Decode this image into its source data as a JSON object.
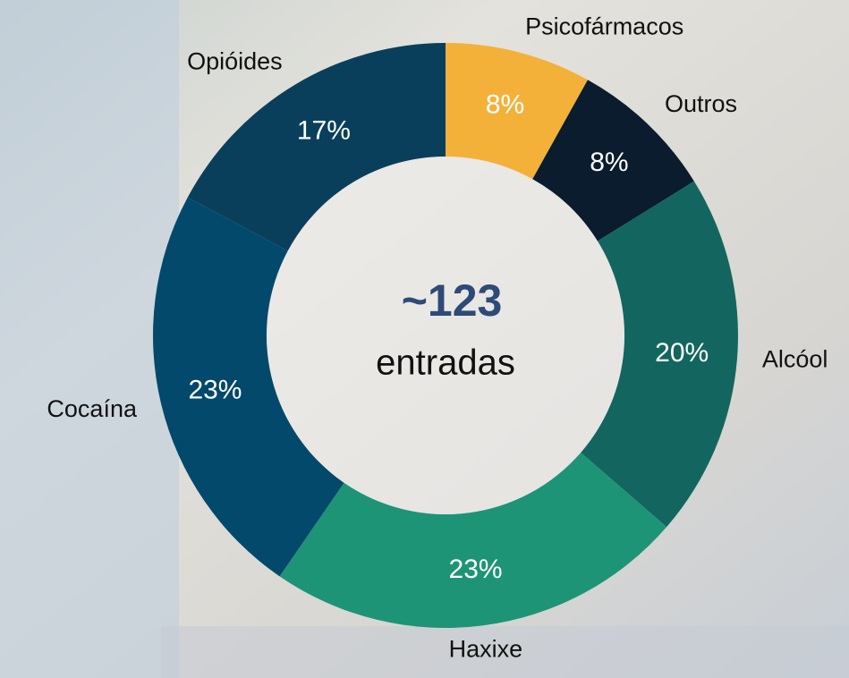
{
  "chart_data": {
    "type": "donut",
    "categories": [
      "Psicofármacos",
      "Outros",
      "Alcóol",
      "Haxixe",
      "Cocaína",
      "Opióides"
    ],
    "values": [
      8,
      8,
      20,
      23,
      23,
      17
    ],
    "value_labels": [
      "8%",
      "8%",
      "20%",
      "23%",
      "23%",
      "17%"
    ],
    "colors": [
      "#f3b13a",
      "#0a1c2e",
      "#13665f",
      "#1e9477",
      "#03496b",
      "#0a3f5c"
    ],
    "center_value": "~123",
    "center_label": "entradas"
  }
}
